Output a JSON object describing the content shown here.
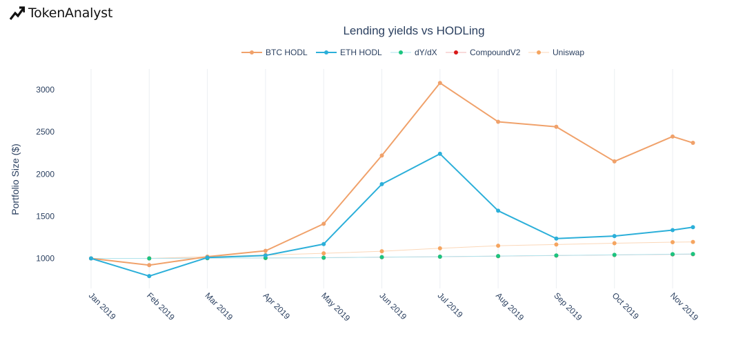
{
  "brand": {
    "name": "TokenAnalyst",
    "logo_icon": "chart-trend-icon"
  },
  "chart_data": {
    "type": "line",
    "title": "Lending yields vs HODLing",
    "xlabel": "",
    "ylabel": "Portfolio Size ($)",
    "ylim": [
      800,
      3200
    ],
    "yticks": [
      1000,
      1500,
      2000,
      2500,
      3000
    ],
    "grid": true,
    "legend_position": "top-center",
    "categories": [
      "Jan 2019",
      "Feb 2019",
      "Mar 2019",
      "Apr 2019",
      "May 2019",
      "Jun 2019",
      "Jul 2019",
      "Aug 2019",
      "Sep 2019",
      "Oct 2019",
      "Nov 2019"
    ],
    "series": [
      {
        "name": "BTC HODL",
        "color": "#f0a16a",
        "width": 2,
        "x": [
          0,
          1,
          2,
          3,
          4,
          5,
          6,
          7,
          8,
          9,
          10,
          10.35
        ],
        "values": [
          1000,
          920,
          1020,
          1090,
          1410,
          2220,
          3080,
          2620,
          2560,
          2150,
          2445,
          2370
        ]
      },
      {
        "name": "ETH HODL",
        "color": "#2bafd9",
        "width": 2,
        "x": [
          0,
          1,
          2,
          3,
          4,
          5,
          6,
          7,
          8,
          9,
          10,
          10.35
        ],
        "values": [
          1000,
          790,
          1010,
          1035,
          1170,
          1880,
          2240,
          1565,
          1235,
          1265,
          1335,
          1370
        ]
      },
      {
        "name": "dY/dX",
        "color": "#aee3ec",
        "point_color": "#1bc57f",
        "width": 1,
        "x": [
          0,
          1,
          2,
          3,
          4,
          5,
          6,
          7,
          8,
          9,
          10,
          10.35
        ],
        "values": [
          1000,
          1000,
          1003,
          1005,
          1008,
          1015,
          1020,
          1028,
          1035,
          1042,
          1050,
          1052
        ]
      },
      {
        "name": "CompoundV2",
        "color": "#f2b6b6",
        "point_color": "#d81818",
        "width": 1,
        "x": [
          0,
          1,
          2,
          3,
          4,
          5,
          6,
          7,
          8,
          9,
          10,
          10.35
        ],
        "values": [
          1000,
          1000,
          1003,
          1005,
          1008,
          1014,
          1020,
          1027,
          1034,
          1041,
          1048,
          1050
        ]
      },
      {
        "name": "Uniswap",
        "color": "#fbd7b8",
        "point_color": "#f5a560",
        "width": 1,
        "x": [
          0,
          1,
          2,
          3,
          4,
          5,
          6,
          7,
          8,
          9,
          10,
          10.35
        ],
        "values": [
          1000,
          1000,
          1020,
          1040,
          1060,
          1085,
          1120,
          1150,
          1165,
          1180,
          1192,
          1195
        ]
      }
    ]
  }
}
